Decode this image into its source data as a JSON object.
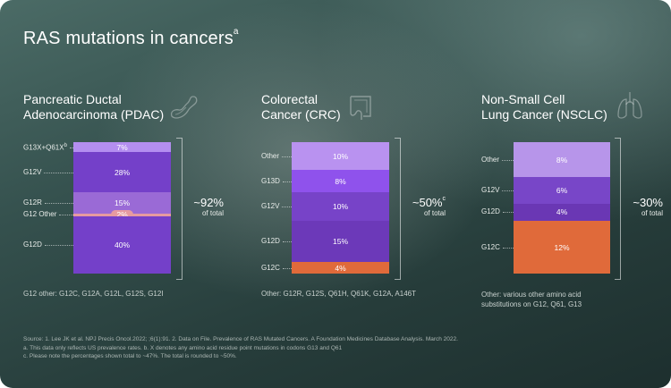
{
  "title": "RAS mutations in cancers",
  "title_sup": "a",
  "colors": {
    "purple_light": "#b48ef0",
    "purple_mid": "#7b46d1",
    "purple_dark": "#6a36b8",
    "purple_alt": "#8b5dcf",
    "pink": "#e69aa0",
    "orange": "#e06a3a"
  },
  "chart_data": [
    {
      "type": "bar",
      "stacked": true,
      "title_line1": "Pancreatic Ductal",
      "title_line2": "Adenocarcinoma (PDAC)",
      "icon": "pancreas-icon",
      "categories": [
        "G13X+Q61X",
        "G12V",
        "G12R",
        "G12 Other",
        "G12D"
      ],
      "category_sup": [
        "b",
        "",
        "",
        "",
        ""
      ],
      "values": [
        7,
        28,
        15,
        2,
        40
      ],
      "labels": [
        "7%",
        "28%",
        "15%",
        "2%",
        "40%"
      ],
      "colors": [
        "#b48ef0",
        "#7440c9",
        "#9a6ad6",
        "#e69aa0",
        "#7440c9"
      ],
      "total": "~92%",
      "total_sup": "",
      "total_label": "of total",
      "note": "G12 other: G12C, G12A, G12L, G12S, G12I"
    },
    {
      "type": "bar",
      "stacked": true,
      "title_line1": "Colorectal",
      "title_line2": "Cancer (CRC)",
      "icon": "intestine-icon",
      "categories": [
        "Other",
        "G13D",
        "G12V",
        "G12D",
        "G12C"
      ],
      "category_sup": [
        "",
        "",
        "",
        "",
        ""
      ],
      "values": [
        10,
        8,
        10,
        15,
        4
      ],
      "labels": [
        "10%",
        "8%",
        "10%",
        "15%",
        "4%"
      ],
      "colors": [
        "#b992f0",
        "#8f52ec",
        "#7743c8",
        "#6c39b9",
        "#e06a3a"
      ],
      "total": "~50%",
      "total_sup": "c",
      "total_label": "of total",
      "note": "Other: G12R, G12S, Q61H, Q61K, G12A, A146T"
    },
    {
      "type": "bar",
      "stacked": true,
      "title_line1": "Non-Small Cell",
      "title_line2": "Lung Cancer (NSCLC)",
      "icon": "lungs-icon",
      "categories": [
        "Other",
        "G12V",
        "G12D",
        "G12C"
      ],
      "category_sup": [
        "",
        "",
        "",
        ""
      ],
      "values": [
        8,
        6,
        4,
        12
      ],
      "labels": [
        "8%",
        "6%",
        "4%",
        "12%"
      ],
      "colors": [
        "#b795ea",
        "#7846c8",
        "#6a37b4",
        "#e06a3a"
      ],
      "total": "~30%",
      "total_sup": "",
      "total_label": "of total",
      "note_line1": "Other: various other amino acid",
      "note_line2": "substitutions on G12, Q61, G13"
    }
  ],
  "footnotes": {
    "line1": "Source: 1. Lee JK et al. NPJ Precis Oncol.2022; ;6(1):91.  2. Data on File. Prevalence of RAS Mutated Cancers. A Foundation Medicines Database Analysis. March 2022.",
    "line2": "a. This data only reflects US prevalence rates. b. X denotes any amino acid residue point mutations in codons G13 and Q61",
    "line3": "c. Please note the percentages shown total to ~47%. The total is rounded to ~50%."
  }
}
